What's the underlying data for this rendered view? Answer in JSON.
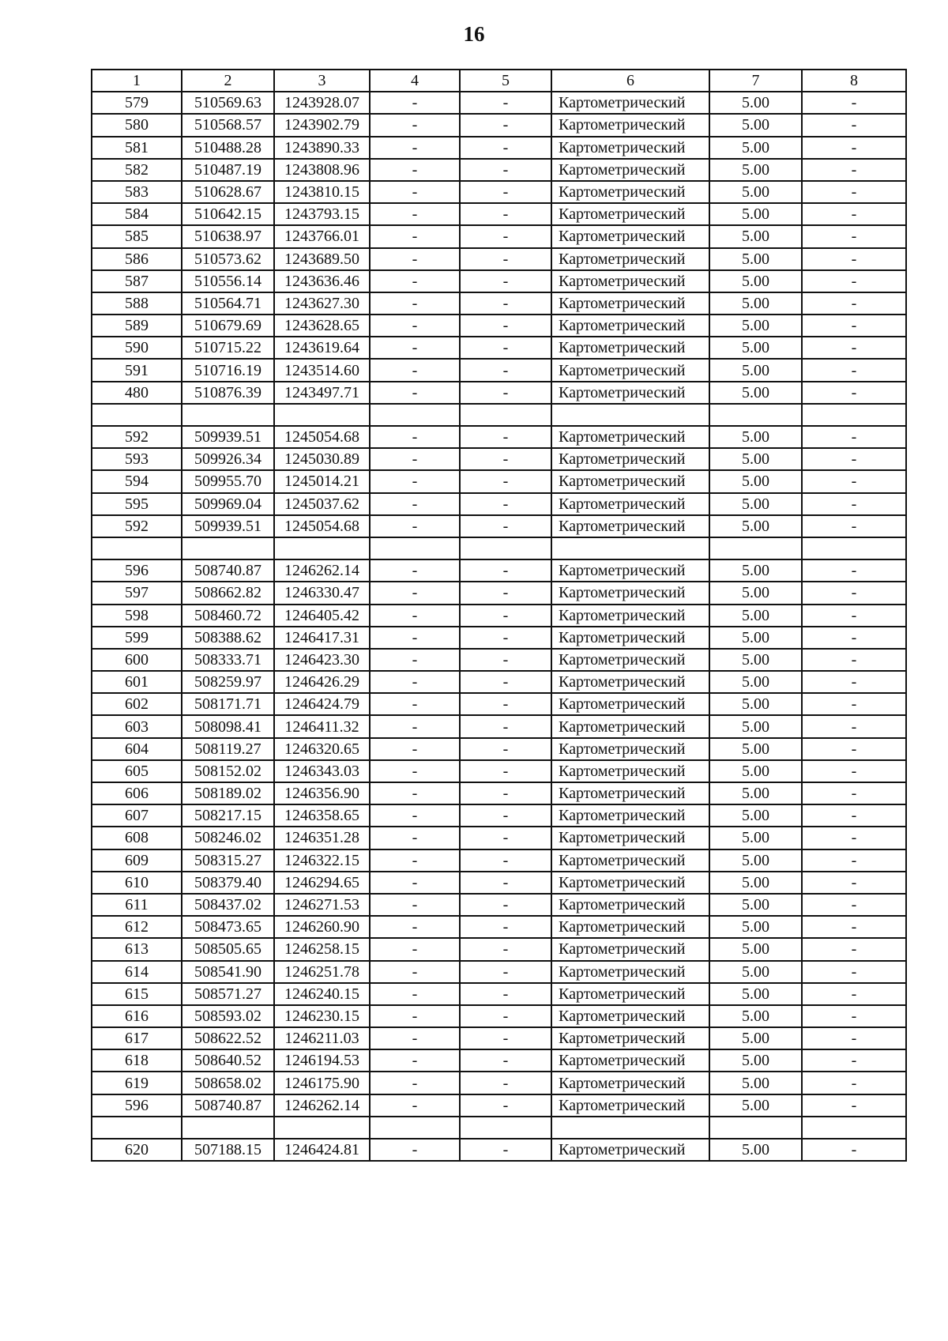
{
  "page_number": "16",
  "table": {
    "headers": [
      "1",
      "2",
      "3",
      "4",
      "5",
      "6",
      "7",
      "8"
    ],
    "rows": [
      [
        "579",
        "510569.63",
        "1243928.07",
        "-",
        "-",
        "Картометрический",
        "5.00",
        "-"
      ],
      [
        "580",
        "510568.57",
        "1243902.79",
        "-",
        "-",
        "Картометрический",
        "5.00",
        "-"
      ],
      [
        "581",
        "510488.28",
        "1243890.33",
        "-",
        "-",
        "Картометрический",
        "5.00",
        "-"
      ],
      [
        "582",
        "510487.19",
        "1243808.96",
        "-",
        "-",
        "Картометрический",
        "5.00",
        "-"
      ],
      [
        "583",
        "510628.67",
        "1243810.15",
        "-",
        "-",
        "Картометрический",
        "5.00",
        "-"
      ],
      [
        "584",
        "510642.15",
        "1243793.15",
        "-",
        "-",
        "Картометрический",
        "5.00",
        "-"
      ],
      [
        "585",
        "510638.97",
        "1243766.01",
        "-",
        "-",
        "Картометрический",
        "5.00",
        "-"
      ],
      [
        "586",
        "510573.62",
        "1243689.50",
        "-",
        "-",
        "Картометрический",
        "5.00",
        "-"
      ],
      [
        "587",
        "510556.14",
        "1243636.46",
        "-",
        "-",
        "Картометрический",
        "5.00",
        "-"
      ],
      [
        "588",
        "510564.71",
        "1243627.30",
        "-",
        "-",
        "Картометрический",
        "5.00",
        "-"
      ],
      [
        "589",
        "510679.69",
        "1243628.65",
        "-",
        "-",
        "Картометрический",
        "5.00",
        "-"
      ],
      [
        "590",
        "510715.22",
        "1243619.64",
        "-",
        "-",
        "Картометрический",
        "5.00",
        "-"
      ],
      [
        "591",
        "510716.19",
        "1243514.60",
        "-",
        "-",
        "Картометрический",
        "5.00",
        "-"
      ],
      [
        "480",
        "510876.39",
        "1243497.71",
        "-",
        "-",
        "Картометрический",
        "5.00",
        "-"
      ],
      [
        "",
        "",
        "",
        "",
        "",
        "",
        "",
        ""
      ],
      [
        "592",
        "509939.51",
        "1245054.68",
        "-",
        "-",
        "Картометрический",
        "5.00",
        "-"
      ],
      [
        "593",
        "509926.34",
        "1245030.89",
        "-",
        "-",
        "Картометрический",
        "5.00",
        "-"
      ],
      [
        "594",
        "509955.70",
        "1245014.21",
        "-",
        "-",
        "Картометрический",
        "5.00",
        "-"
      ],
      [
        "595",
        "509969.04",
        "1245037.62",
        "-",
        "-",
        "Картометрический",
        "5.00",
        "-"
      ],
      [
        "592",
        "509939.51",
        "1245054.68",
        "-",
        "-",
        "Картометрический",
        "5.00",
        "-"
      ],
      [
        "",
        "",
        "",
        "",
        "",
        "",
        "",
        ""
      ],
      [
        "596",
        "508740.87",
        "1246262.14",
        "-",
        "-",
        "Картометрический",
        "5.00",
        "-"
      ],
      [
        "597",
        "508662.82",
        "1246330.47",
        "-",
        "-",
        "Картометрический",
        "5.00",
        "-"
      ],
      [
        "598",
        "508460.72",
        "1246405.42",
        "-",
        "-",
        "Картометрический",
        "5.00",
        "-"
      ],
      [
        "599",
        "508388.62",
        "1246417.31",
        "-",
        "-",
        "Картометрический",
        "5.00",
        "-"
      ],
      [
        "600",
        "508333.71",
        "1246423.30",
        "-",
        "-",
        "Картометрический",
        "5.00",
        "-"
      ],
      [
        "601",
        "508259.97",
        "1246426.29",
        "-",
        "-",
        "Картометрический",
        "5.00",
        "-"
      ],
      [
        "602",
        "508171.71",
        "1246424.79",
        "-",
        "-",
        "Картометрический",
        "5.00",
        "-"
      ],
      [
        "603",
        "508098.41",
        "1246411.32",
        "-",
        "-",
        "Картометрический",
        "5.00",
        "-"
      ],
      [
        "604",
        "508119.27",
        "1246320.65",
        "-",
        "-",
        "Картометрический",
        "5.00",
        "-"
      ],
      [
        "605",
        "508152.02",
        "1246343.03",
        "-",
        "-",
        "Картометрический",
        "5.00",
        "-"
      ],
      [
        "606",
        "508189.02",
        "1246356.90",
        "-",
        "-",
        "Картометрический",
        "5.00",
        "-"
      ],
      [
        "607",
        "508217.15",
        "1246358.65",
        "-",
        "-",
        "Картометрический",
        "5.00",
        "-"
      ],
      [
        "608",
        "508246.02",
        "1246351.28",
        "-",
        "-",
        "Картометрический",
        "5.00",
        "-"
      ],
      [
        "609",
        "508315.27",
        "1246322.15",
        "-",
        "-",
        "Картометрический",
        "5.00",
        "-"
      ],
      [
        "610",
        "508379.40",
        "1246294.65",
        "-",
        "-",
        "Картометрический",
        "5.00",
        "-"
      ],
      [
        "611",
        "508437.02",
        "1246271.53",
        "-",
        "-",
        "Картометрический",
        "5.00",
        "-"
      ],
      [
        "612",
        "508473.65",
        "1246260.90",
        "-",
        "-",
        "Картометрический",
        "5.00",
        "-"
      ],
      [
        "613",
        "508505.65",
        "1246258.15",
        "-",
        "-",
        "Картометрический",
        "5.00",
        "-"
      ],
      [
        "614",
        "508541.90",
        "1246251.78",
        "-",
        "-",
        "Картометрический",
        "5.00",
        "-"
      ],
      [
        "615",
        "508571.27",
        "1246240.15",
        "-",
        "-",
        "Картометрический",
        "5.00",
        "-"
      ],
      [
        "616",
        "508593.02",
        "1246230.15",
        "-",
        "-",
        "Картометрический",
        "5.00",
        "-"
      ],
      [
        "617",
        "508622.52",
        "1246211.03",
        "-",
        "-",
        "Картометрический",
        "5.00",
        "-"
      ],
      [
        "618",
        "508640.52",
        "1246194.53",
        "-",
        "-",
        "Картометрический",
        "5.00",
        "-"
      ],
      [
        "619",
        "508658.02",
        "1246175.90",
        "-",
        "-",
        "Картометрический",
        "5.00",
        "-"
      ],
      [
        "596",
        "508740.87",
        "1246262.14",
        "-",
        "-",
        "Картометрический",
        "5.00",
        "-"
      ],
      [
        "",
        "",
        "",
        "",
        "",
        "",
        "",
        ""
      ],
      [
        "620",
        "507188.15",
        "1246424.81",
        "-",
        "-",
        "Картометрический",
        "5.00",
        "-"
      ]
    ]
  }
}
